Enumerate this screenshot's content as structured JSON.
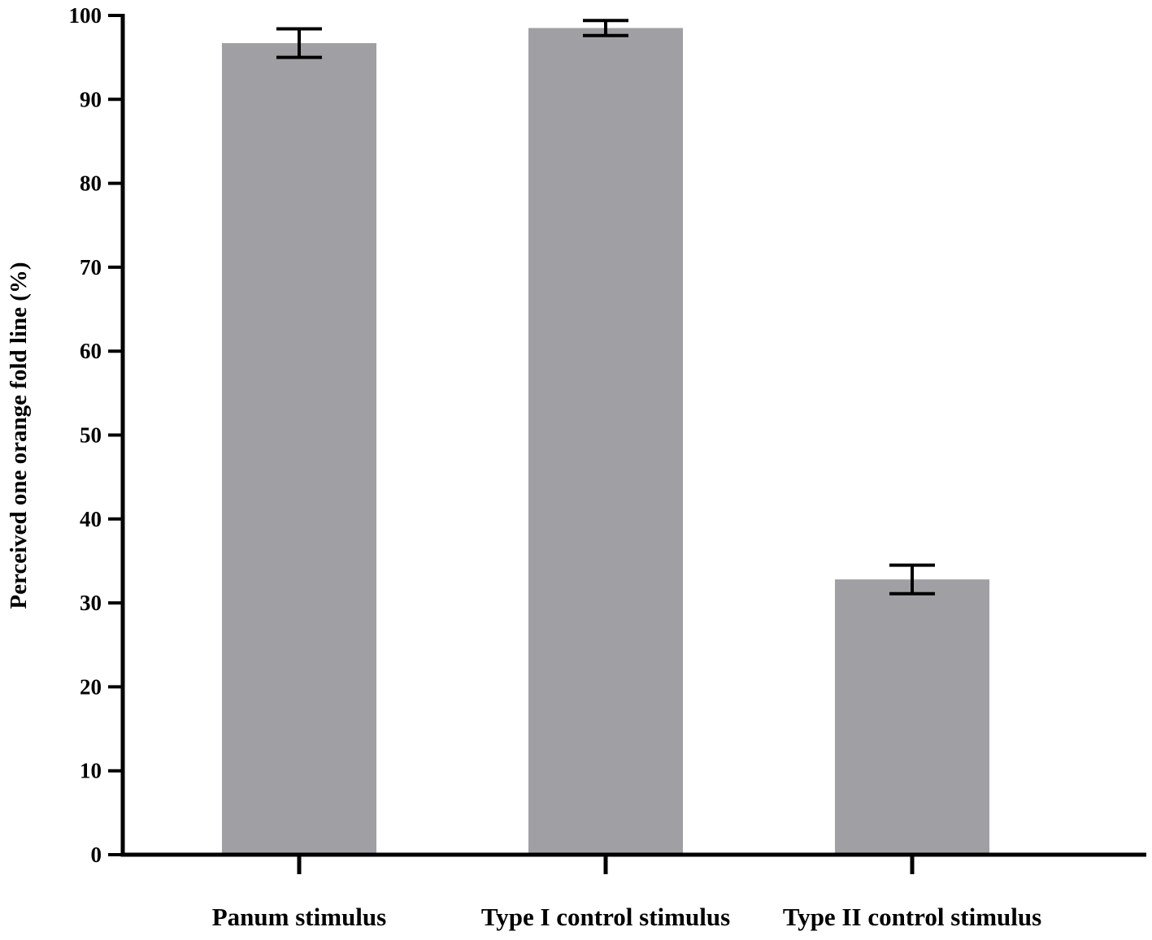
{
  "chart_data": {
    "type": "bar",
    "title": "",
    "xlabel": "",
    "ylabel": "Perceived one orange fold line (%)",
    "ylim": [
      0,
      100
    ],
    "yticks": [
      0,
      10,
      20,
      30,
      40,
      50,
      60,
      70,
      80,
      90,
      100
    ],
    "categories": [
      "Panum stimulus",
      "Type I control stimulus",
      "Type II control stimulus"
    ],
    "series": [
      {
        "values": [
          96.7,
          98.5,
          32.8
        ],
        "error": [
          1.7,
          0.9,
          1.7
        ]
      }
    ],
    "bar_color": "#a09fa4",
    "axis_color": "#000000",
    "grid": false,
    "legend": "none"
  }
}
